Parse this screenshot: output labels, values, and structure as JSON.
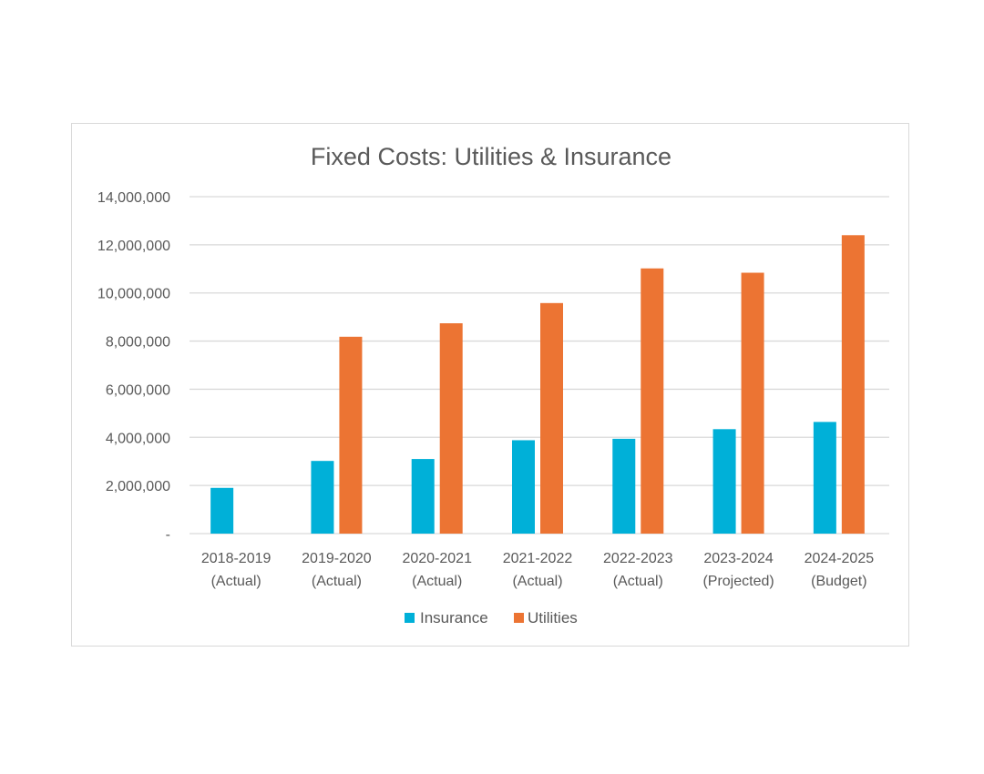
{
  "chart_data": {
    "type": "bar",
    "title": "Fixed Costs: Utilities & Insurance",
    "xlabel": "",
    "ylabel": "",
    "categories": [
      [
        "2018-2019",
        "(Actual)"
      ],
      [
        "2019-2020",
        "(Actual)"
      ],
      [
        "2020-2021",
        "(Actual)"
      ],
      [
        "2021-2022",
        "(Actual)"
      ],
      [
        "2022-2023",
        "(Actual)"
      ],
      [
        "2023-2024",
        "(Projected)"
      ],
      [
        "2024-2025",
        "(Budget)"
      ]
    ],
    "series": [
      {
        "name": "Insurance",
        "color": "#00b0d8",
        "values": [
          1900000,
          3020000,
          3100000,
          3880000,
          3940000,
          4340000,
          4640000
        ]
      },
      {
        "name": "Utilities",
        "color": "#ec7433",
        "values": [
          0,
          8180000,
          8740000,
          9580000,
          11020000,
          10840000,
          12400000
        ]
      }
    ],
    "ylim": [
      0,
      14000000
    ],
    "yticks": [
      0,
      2000000,
      4000000,
      6000000,
      8000000,
      10000000,
      12000000,
      14000000
    ],
    "ytick_labels": [
      "-",
      "2,000,000",
      "4,000,000",
      "6,000,000",
      "8,000,000",
      "10,000,000",
      "12,000,000",
      "14,000,000"
    ],
    "grid": true,
    "gridline_color": "#d9d9d9",
    "legend_position": "bottom"
  }
}
